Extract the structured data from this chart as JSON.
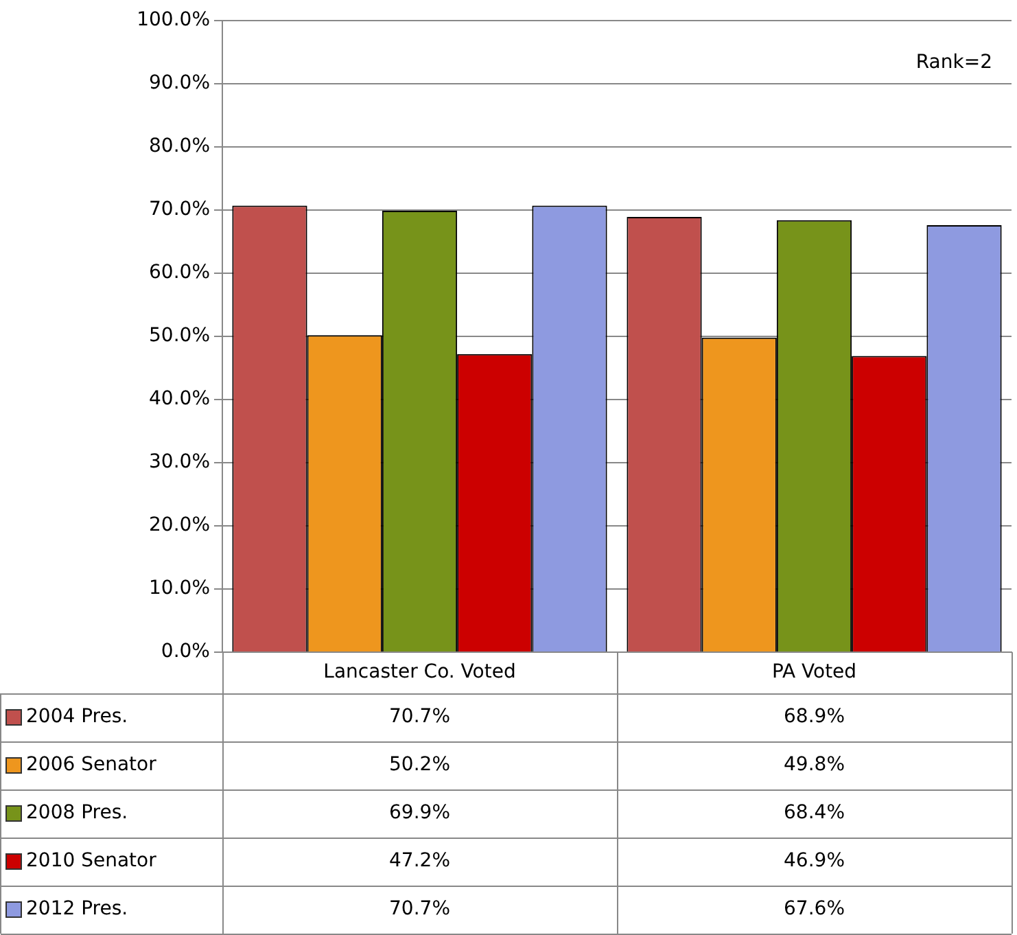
{
  "chart_data": {
    "type": "bar",
    "categories": [
      "Lancaster Co. Voted",
      "PA Voted"
    ],
    "series": [
      {
        "name": "2004 Pres.",
        "color": "#c0504d",
        "values": [
          70.7,
          68.9
        ],
        "value_labels": [
          "70.7%",
          "68.9%"
        ]
      },
      {
        "name": "2006 Senator",
        "color": "#ee961e",
        "values": [
          50.2,
          49.8
        ],
        "value_labels": [
          "50.2%",
          "49.8%"
        ]
      },
      {
        "name": "2008 Pres.",
        "color": "#77931a",
        "values": [
          69.9,
          68.4
        ],
        "value_labels": [
          "69.9%",
          "68.4%"
        ]
      },
      {
        "name": "2010 Senator",
        "color": "#cc0000",
        "values": [
          47.2,
          46.9
        ],
        "value_labels": [
          "47.2%",
          "46.9%"
        ]
      },
      {
        "name": "2012 Pres.",
        "color": "#8e9ae0",
        "values": [
          70.7,
          67.6
        ],
        "value_labels": [
          "70.7%",
          "67.6%"
        ]
      }
    ],
    "ylim": [
      0,
      100
    ],
    "yticks": [
      {
        "value": 0,
        "label": "0.0%"
      },
      {
        "value": 10,
        "label": "10.0%"
      },
      {
        "value": 20,
        "label": "20.0%"
      },
      {
        "value": 30,
        "label": "30.0%"
      },
      {
        "value": 40,
        "label": "40.0%"
      },
      {
        "value": 50,
        "label": "50.0%"
      },
      {
        "value": 60,
        "label": "60.0%"
      },
      {
        "value": 70,
        "label": "70.0%"
      },
      {
        "value": 80,
        "label": "80.0%"
      },
      {
        "value": 90,
        "label": "90.0%"
      },
      {
        "value": 100,
        "label": "100.0%"
      }
    ],
    "annotations": [
      "Rank=2"
    ],
    "grid": "y",
    "legend": "bottom"
  }
}
